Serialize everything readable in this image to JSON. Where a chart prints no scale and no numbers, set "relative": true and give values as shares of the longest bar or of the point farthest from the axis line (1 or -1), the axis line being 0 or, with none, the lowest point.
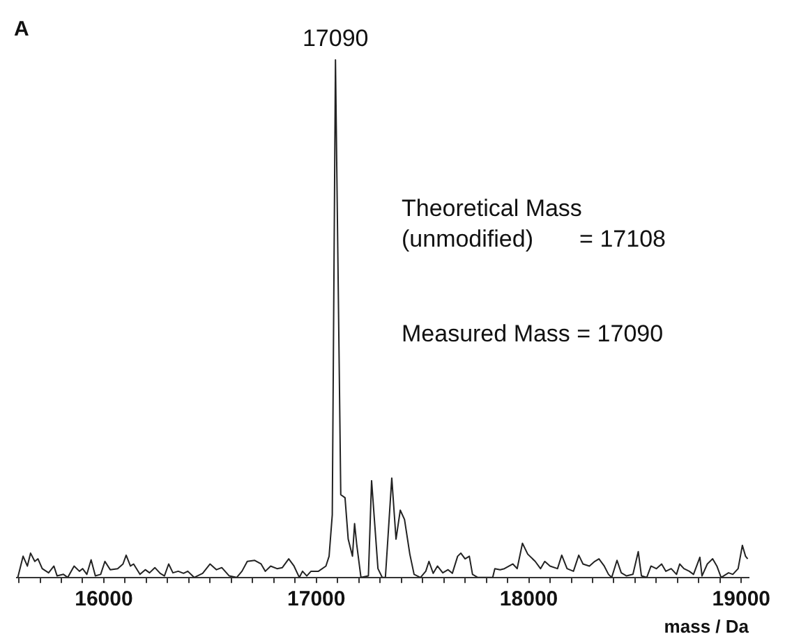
{
  "chart_data": {
    "type": "line",
    "relative": true,
    "xlabel": "mass / Da",
    "xlim": [
      15590,
      19035
    ],
    "xticks": [
      {
        "value": 15600,
        "label": null
      },
      {
        "value": 15700,
        "label": null
      },
      {
        "value": 15800,
        "label": null
      },
      {
        "value": 15900,
        "label": null
      },
      16000,
      {
        "value": 16100,
        "label": null
      },
      {
        "value": 16200,
        "label": null
      },
      {
        "value": 16300,
        "label": null
      },
      {
        "value": 16400,
        "label": null
      },
      {
        "value": 16500,
        "label": null
      },
      {
        "value": 16600,
        "label": null
      },
      {
        "value": 16700,
        "label": null
      },
      {
        "value": 16800,
        "label": null
      },
      {
        "value": 16900,
        "label": null
      },
      17000,
      {
        "value": 17100,
        "label": null
      },
      {
        "value": 17200,
        "label": null
      },
      {
        "value": 17300,
        "label": null
      },
      {
        "value": 17400,
        "label": null
      },
      {
        "value": 17500,
        "label": null
      },
      {
        "value": 17600,
        "label": null
      },
      {
        "value": 17700,
        "label": null
      },
      {
        "value": 17800,
        "label": null
      },
      {
        "value": 17900,
        "label": null
      },
      18000,
      {
        "value": 18100,
        "label": null
      },
      {
        "value": 18200,
        "label": null
      },
      {
        "value": 18300,
        "label": null
      },
      {
        "value": 18400,
        "label": null
      },
      {
        "value": 18500,
        "label": null
      },
      {
        "value": 18600,
        "label": null
      },
      {
        "value": 18700,
        "label": null
      },
      {
        "value": 18800,
        "label": null
      },
      {
        "value": 18900,
        "label": null
      },
      19000
    ],
    "annotations": [
      "A",
      {
        "text": "17090",
        "x": 17090,
        "y": 1
      },
      "Theoretical Mass\n(unmodified)       = 17108",
      "Measured Mass = 17090"
    ],
    "series": [
      {
        "color": "#222222",
        "x": [
          15595,
          15620,
          15640,
          15655,
          15675,
          15690,
          15710,
          15740,
          15765,
          15780,
          15810,
          15830,
          15860,
          15885,
          15900,
          15920,
          15940,
          15960,
          15985,
          16005,
          16030,
          16065,
          16090,
          16105,
          16125,
          16140,
          16170,
          16195,
          16215,
          16240,
          16265,
          16285,
          16305,
          16325,
          16350,
          16375,
          16395,
          16425,
          16465,
          16500,
          16530,
          16555,
          16590,
          16625,
          16650,
          16675,
          16710,
          16740,
          16760,
          16785,
          16815,
          16840,
          16870,
          16895,
          16920,
          16935,
          16955,
          16975,
          17010,
          17045,
          17060,
          17075,
          17090,
          17115,
          17135,
          17150,
          17170,
          17180,
          17190,
          17210,
          17245,
          17260,
          17275,
          17290,
          17310,
          17325,
          17355,
          17375,
          17395,
          17415,
          17440,
          17460,
          17490,
          17515,
          17530,
          17550,
          17570,
          17595,
          17620,
          17640,
          17665,
          17680,
          17700,
          17720,
          17735,
          17760,
          17830,
          17840,
          17865,
          17885,
          17925,
          17945,
          17970,
          17995,
          18030,
          18055,
          18075,
          18100,
          18135,
          18155,
          18180,
          18210,
          18235,
          18255,
          18285,
          18310,
          18330,
          18355,
          18375,
          18390,
          18415,
          18435,
          18460,
          18490,
          18515,
          18530,
          18555,
          18575,
          18600,
          18625,
          18645,
          18670,
          18695,
          18710,
          18730,
          18755,
          18775,
          18805,
          18815,
          18840,
          18865,
          18885,
          18905,
          18940,
          18960,
          18985,
          19005,
          19020,
          19030
        ],
        "values": [
          0,
          0.041,
          0.022,
          0.047,
          0.031,
          0.036,
          0.017,
          0.009,
          0.022,
          0.003,
          0.006,
          0,
          0.022,
          0.012,
          0.017,
          0.006,
          0.034,
          0.003,
          0.006,
          0.031,
          0.015,
          0.017,
          0.026,
          0.043,
          0.022,
          0.026,
          0.006,
          0.015,
          0.009,
          0.019,
          0.008,
          0.003,
          0.026,
          0.009,
          0.012,
          0.008,
          0.012,
          0,
          0.008,
          0.026,
          0.015,
          0.019,
          0.003,
          0,
          0.012,
          0.031,
          0.033,
          0.026,
          0.012,
          0.022,
          0.017,
          0.019,
          0.036,
          0.022,
          0,
          0.012,
          0.003,
          0.012,
          0.012,
          0.022,
          0.041,
          0.121,
          1,
          0.16,
          0.154,
          0.074,
          0.041,
          0.104,
          0.064,
          0,
          0.003,
          0.187,
          0.102,
          0.017,
          0,
          0,
          0.192,
          0.074,
          0.13,
          0.112,
          0.045,
          0.006,
          0,
          0.012,
          0.031,
          0.008,
          0.022,
          0.009,
          0.015,
          0.008,
          0.041,
          0.047,
          0.036,
          0.041,
          0.006,
          0,
          0,
          0.017,
          0.015,
          0.017,
          0.026,
          0.017,
          0.066,
          0.045,
          0.031,
          0.017,
          0.031,
          0.022,
          0.017,
          0.043,
          0.017,
          0.012,
          0.043,
          0.026,
          0.022,
          0.031,
          0.036,
          0.022,
          0.006,
          0,
          0.033,
          0.009,
          0.003,
          0.006,
          0.05,
          0.003,
          0,
          0.022,
          0.017,
          0.026,
          0.012,
          0.017,
          0.006,
          0.026,
          0.017,
          0.012,
          0.006,
          0.039,
          0.003,
          0.026,
          0.036,
          0.022,
          0,
          0.009,
          0.006,
          0.017,
          0.062,
          0.041,
          0.036
        ]
      }
    ]
  }
}
